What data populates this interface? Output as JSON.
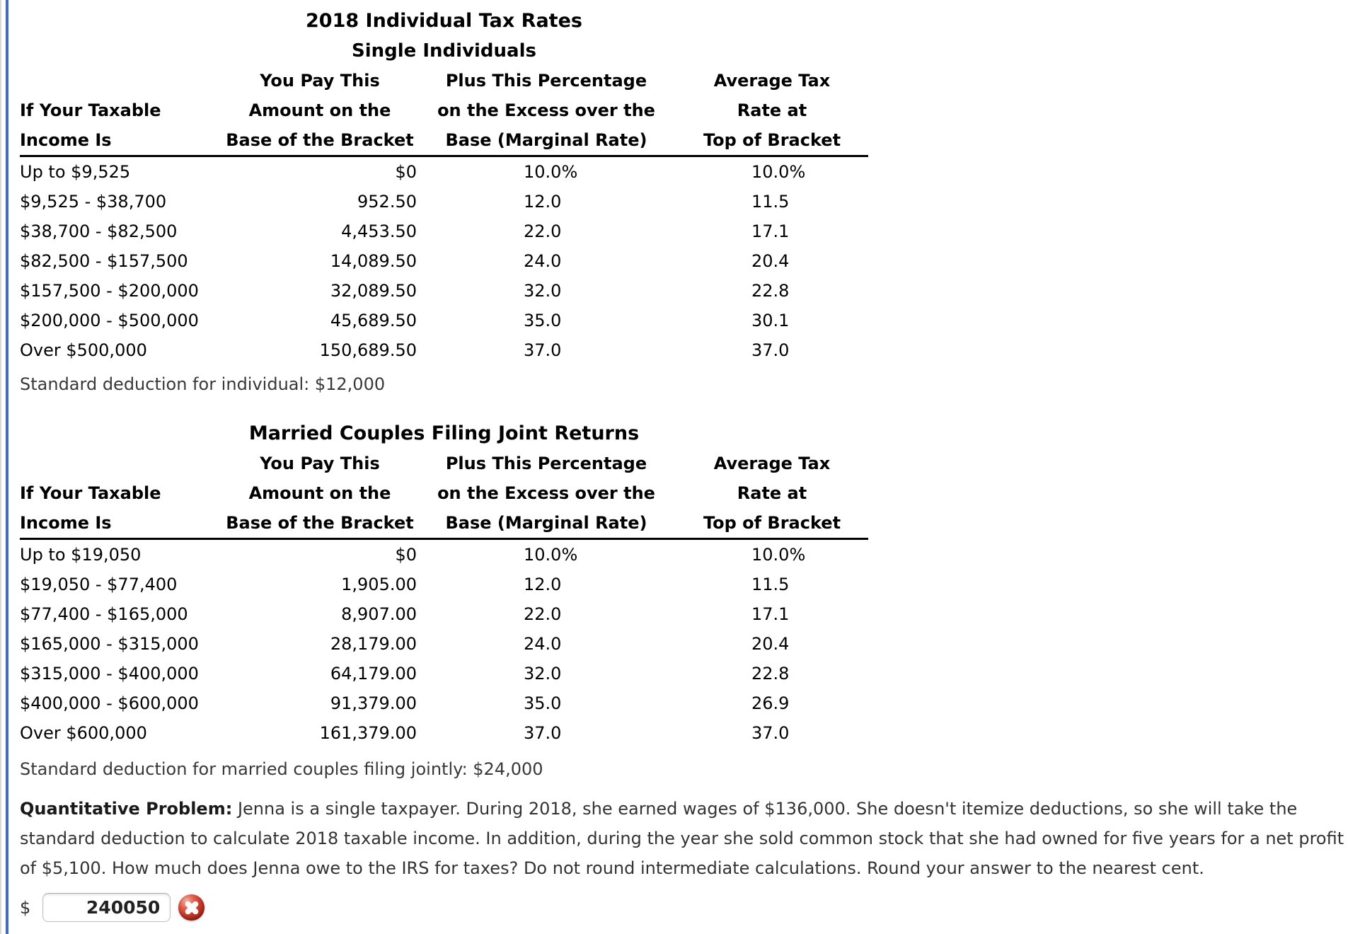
{
  "page": {
    "colors": {
      "left_border_blue": "#3c6cc8",
      "error_red": "#c53526",
      "edge_gray": "#d9d9d9"
    }
  },
  "table1": {
    "title": "2018 Individual Tax Rates",
    "subtitle": "Single Individuals",
    "header": {
      "col1_line1": "",
      "col1_line2": "If Your Taxable",
      "col1_line3": "Income Is",
      "col2_line1": "You Pay This",
      "col2_line2": "Amount on the",
      "col2_line3": "Base of the Bracket",
      "col3_line1": "Plus This Percentage",
      "col3_line2": "on the Excess over the",
      "col3_line3": "Base (Marginal Rate)",
      "col4_line1": "Average Tax",
      "col4_line2": "Rate at",
      "col4_line3": "Top of Bracket"
    },
    "rows": [
      {
        "income": "Up to $9,525",
        "base": "$0",
        "marginal": "10.0%",
        "avg": "10.0%"
      },
      {
        "income": "$9,525 - $38,700",
        "base": "952.50",
        "marginal": "12.0",
        "avg": "11.5"
      },
      {
        "income": "$38,700 - $82,500",
        "base": "4,453.50",
        "marginal": "22.0",
        "avg": "17.1"
      },
      {
        "income": "$82,500 - $157,500",
        "base": "14,089.50",
        "marginal": "24.0",
        "avg": "20.4"
      },
      {
        "income": "$157,500 - $200,000",
        "base": "32,089.50",
        "marginal": "32.0",
        "avg": "22.8"
      },
      {
        "income": "$200,000 - $500,000",
        "base": "45,689.50",
        "marginal": "35.0",
        "avg": "30.1"
      },
      {
        "income": "Over $500,000",
        "base": "150,689.50",
        "marginal": "37.0",
        "avg": "37.0"
      }
    ],
    "footnote": "Standard deduction for individual: $12,000"
  },
  "table2": {
    "title": "Married Couples Filing Joint Returns",
    "header": {
      "col1_line1": "",
      "col1_line2": "If Your Taxable",
      "col1_line3": "Income Is",
      "col2_line1": "You Pay This",
      "col2_line2": "Amount on the",
      "col2_line3": "Base of the Bracket",
      "col3_line1": "Plus This Percentage",
      "col3_line2": "on the Excess over the",
      "col3_line3": "Base (Marginal Rate)",
      "col4_line1": "Average Tax",
      "col4_line2": "Rate at",
      "col4_line3": "Top of Bracket"
    },
    "rows": [
      {
        "income": "Up to $19,050",
        "base": "$0",
        "marginal": "10.0%",
        "avg": "10.0%"
      },
      {
        "income": "$19,050 - $77,400",
        "base": "1,905.00",
        "marginal": "12.0",
        "avg": "11.5"
      },
      {
        "income": "$77,400 - $165,000",
        "base": "8,907.00",
        "marginal": "22.0",
        "avg": "17.1"
      },
      {
        "income": "$165,000 - $315,000",
        "base": "28,179.00",
        "marginal": "24.0",
        "avg": "20.4"
      },
      {
        "income": "$315,000 - $400,000",
        "base": "64,179.00",
        "marginal": "32.0",
        "avg": "22.8"
      },
      {
        "income": "$400,000 - $600,000",
        "base": "91,379.00",
        "marginal": "35.0",
        "avg": "26.9"
      },
      {
        "income": "Over $600,000",
        "base": "161,379.00",
        "marginal": "37.0",
        "avg": "37.0"
      }
    ],
    "footnote": "Standard deduction for married couples filing jointly: $24,000"
  },
  "problem": {
    "label": "Quantitative Problem:",
    "text": " Jenna is a single taxpayer. During 2018, she earned wages of $136,000. She doesn't itemize deductions, so she will take the standard deduction to calculate 2018 taxable income. In addition, during the year she sold common stock that she had owned for five years for a net profit of $5,100. How much does Jenna owe to the IRS for taxes? Do not round intermediate calculations. Round your answer to the nearest cent."
  },
  "answer": {
    "currency": "$",
    "value": "240050",
    "status_icon": "incorrect-x-icon"
  }
}
